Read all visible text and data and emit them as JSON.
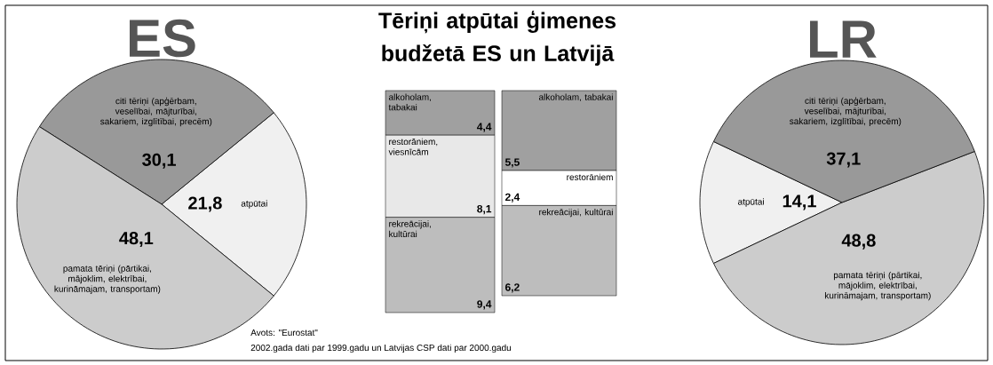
{
  "chart_data": [
    {
      "type": "pie",
      "title": "ES",
      "categories": [
        "atpūtai",
        "citi tēriņi (apģērbam, veselībai, mājturībai, sakariem, izglītībai, precēm)",
        "pamata tēriņi (pārtikai, mājoklim, elektrībai, kurināmajam, transportam)"
      ],
      "values": [
        21.8,
        30.1,
        48.1
      ],
      "value_labels": [
        "21,8",
        "30,1",
        "48,1"
      ],
      "colors": [
        "#f0f0f0",
        "#999999",
        "#cccccc"
      ]
    },
    {
      "type": "bar",
      "stacked": true,
      "title": "Tēriņi atpūtai ģimenes budžetā ES un Latvijā",
      "annotations": [
        "Avots: \"Eurostat\"",
        "2002.gada dati par 1999.gadu un Latvijas CSP dati par 2000.gadu"
      ],
      "categories": [
        null
      ],
      "series": [
        {
          "name": "rekreācijai, kultūrai",
          "color": "#bdbdbd",
          "values": [
            9.4
          ],
          "value_labels": [
            "9,4"
          ]
        },
        {
          "name": "restorāniem, viesnīcām",
          "color": "#e8e8e8",
          "values": [
            8.1
          ],
          "value_labels": [
            "8,1"
          ]
        },
        {
          "name": "alkoholam, tabakai",
          "color": "#a0a0a0",
          "values": [
            4.4
          ],
          "value_labels": [
            "4,4"
          ]
        }
      ]
    },
    {
      "type": "bar",
      "stacked": true,
      "categories": [
        null
      ],
      "series": [
        {
          "name": "rekreācijai, kultūrai",
          "color": "#bdbdbd",
          "values": [
            6.2
          ],
          "value_labels": [
            "6,2"
          ]
        },
        {
          "name": "restorāniem",
          "color": "#ffffff",
          "values": [
            2.4
          ],
          "value_labels": [
            "2,4"
          ]
        },
        {
          "name": "alkoholam, tabakai",
          "color": "#a0a0a0",
          "values": [
            5.5
          ],
          "value_labels": [
            "5,5"
          ]
        }
      ]
    },
    {
      "type": "pie",
      "title": "LR",
      "categories": [
        "atpūtai",
        "pamata tēriņi (pārtikai, mājoklim, elektrībai, kurināmajam, transportam)",
        "citi tēriņi (apģērbam, veselībai, mājturībai, sakariem, izglītībai, precēm)"
      ],
      "values": [
        14.1,
        48.8,
        37.1
      ],
      "value_labels": [
        "14,1",
        "48,8",
        "37,1"
      ],
      "colors": [
        "#f0f0f0",
        "#cccccc",
        "#999999"
      ]
    }
  ]
}
